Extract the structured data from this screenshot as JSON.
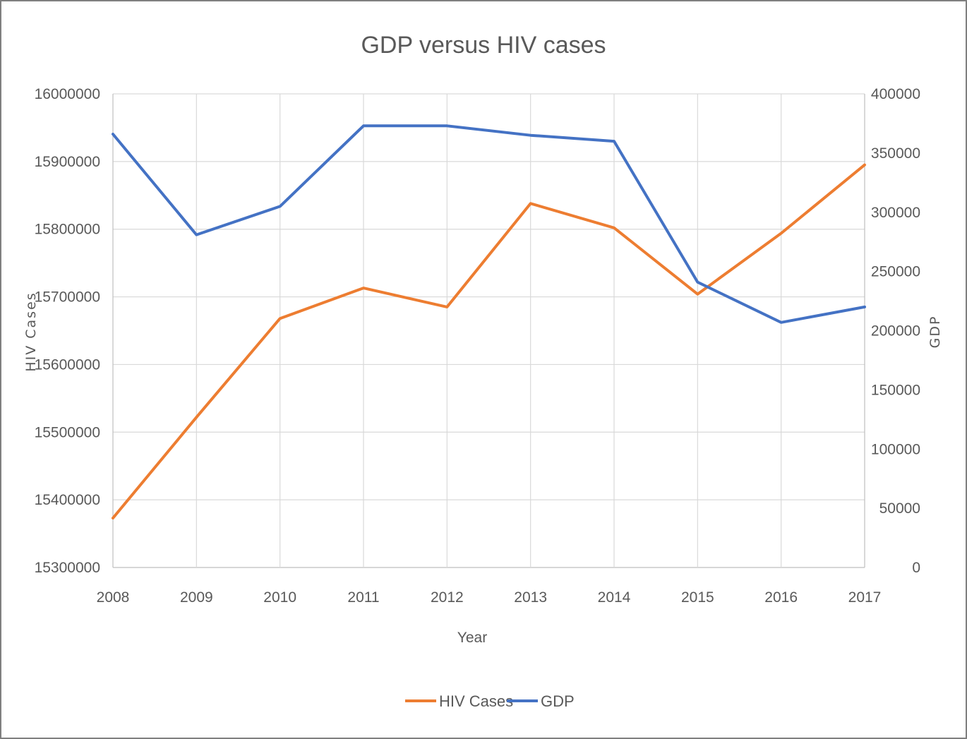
{
  "chart_data": {
    "type": "line",
    "title": "GDP versus HIV cases",
    "xlabel": "Year",
    "ylabel": "HIV Cases",
    "y2label": "GDP",
    "categories": [
      "2008",
      "2009",
      "2010",
      "2011",
      "2012",
      "2013",
      "2014",
      "2015",
      "2016",
      "2017"
    ],
    "ylim": [
      15300000,
      16000000
    ],
    "y2lim": [
      0,
      400000
    ],
    "yticks": [
      "15300000",
      "15400000",
      "15500000",
      "15600000",
      "15700000",
      "15800000",
      "15900000",
      "16000000"
    ],
    "y2ticks": [
      "0",
      "50000",
      "100000",
      "150000",
      "200000",
      "250000",
      "300000",
      "350000",
      "400000"
    ],
    "grid": true,
    "legend_position": "bottom",
    "series": [
      {
        "name": "HIV Cases",
        "axis": "left",
        "color": "#ed7d31",
        "values": [
          15373000,
          15522000,
          15668000,
          15713000,
          15685000,
          15838000,
          15802000,
          15704000,
          15794000,
          15895000
        ]
      },
      {
        "name": "GDP",
        "axis": "right",
        "color": "#4472c4",
        "values": [
          366000,
          281000,
          305000,
          373000,
          373000,
          365000,
          360000,
          241000,
          207000,
          220000
        ]
      }
    ]
  }
}
